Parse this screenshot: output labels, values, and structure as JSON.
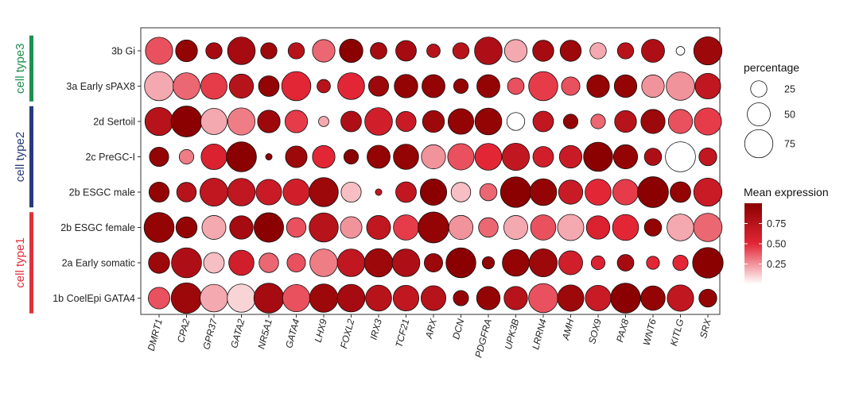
{
  "chart_data": {
    "type": "dotplot",
    "genes": [
      "DMRT1",
      "CPA2",
      "GPR37",
      "GATA2",
      "NR5A1",
      "GATA4",
      "LHX9",
      "FOXL2",
      "IRX3",
      "TCF21",
      "ARX",
      "DCN",
      "PDGFRA",
      "UPK3B",
      "LRRN4",
      "AMH",
      "SOX9",
      "PAX8",
      "WNT6",
      "KITLG",
      "SRX"
    ],
    "rows": [
      "3b Gi",
      "3a Early sPAX8",
      "2d Sertoil",
      "2c PreGC-I",
      "2b ESGC male",
      "2b ESGC female",
      "2a Early somatic",
      "1b CoelEpi GATA4"
    ],
    "groups": [
      {
        "label": "cell type3",
        "color": "#1e8f4e",
        "rows": [
          "3b Gi",
          "3a Early sPAX8"
        ]
      },
      {
        "label": "cell type2",
        "color": "#283a7a",
        "rows": [
          "2d Sertoil",
          "2c PreGC-I",
          "2b ESGC male"
        ]
      },
      {
        "label": "cell type1",
        "color": "#e0303c",
        "rows": [
          "2b ESGC female",
          "2a Early somatic",
          "1b CoelEpi GATA4"
        ]
      }
    ],
    "percentage": [
      [
        70,
        45,
        25,
        72,
        25,
        25,
        48,
        52,
        26,
        40,
        17,
        25,
        72,
        48,
        42,
        42,
        25,
        25,
        50,
        7,
        75
      ],
      [
        80,
        68,
        65,
        55,
        40,
        80,
        17,
        68,
        38,
        52,
        50,
        20,
        50,
        26,
        80,
        32,
        48,
        48,
        48,
        76,
        62
      ],
      [
        75,
        90,
        65,
        70,
        48,
        48,
        10,
        40,
        72,
        38,
        45,
        62,
        68,
        30,
        40,
        20,
        20,
        45,
        55,
        55,
        70
      ],
      [
        35,
        20,
        62,
        85,
        4,
        44,
        48,
        20,
        50,
        60,
        55,
        66,
        68,
        70,
        40,
        48,
        80,
        55,
        28,
        85,
        30
      ],
      [
        38,
        36,
        74,
        72,
        62,
        66,
        80,
        38,
        4,
        40,
        66,
        36,
        28,
        88,
        68,
        55,
        64,
        62,
        90,
        40,
        75
      ],
      [
        85,
        42,
        54,
        52,
        82,
        36,
        80,
        44,
        54,
        60,
        90,
        55,
        36,
        54,
        60,
        65,
        52,
        64,
        28,
        68,
        76
      ],
      [
        42,
        85,
        40,
        60,
        36,
        32,
        72,
        72,
        76,
        72,
        32,
        84,
        14,
        68,
        74,
        54,
        18,
        26,
        16,
        22,
        88
      ],
      [
        44,
        88,
        72,
        75,
        84,
        70,
        76,
        72,
        64,
        62,
        58,
        22,
        52,
        52,
        80,
        66,
        62,
        84,
        56,
        66,
        30
      ]
    ],
    "expression": [
      [
        0.4,
        0.95,
        0.85,
        0.85,
        0.9,
        0.75,
        0.35,
        1.0,
        0.85,
        0.85,
        0.75,
        0.75,
        0.8,
        0.2,
        0.85,
        0.9,
        0.2,
        0.75,
        0.8,
        0.0,
        0.9
      ],
      [
        0.2,
        0.35,
        0.45,
        0.75,
        0.95,
        0.5,
        0.75,
        0.5,
        0.9,
        0.95,
        0.95,
        0.95,
        0.95,
        0.4,
        0.45,
        0.4,
        0.95,
        0.95,
        0.25,
        0.25,
        0.7
      ],
      [
        0.75,
        1.0,
        0.2,
        0.3,
        0.9,
        0.45,
        0.2,
        0.8,
        0.6,
        0.65,
        0.9,
        0.95,
        0.95,
        0.0,
        0.7,
        0.95,
        0.35,
        0.75,
        0.9,
        0.4,
        0.45
      ],
      [
        0.95,
        0.3,
        0.55,
        1.0,
        1.0,
        0.9,
        0.5,
        1.0,
        0.95,
        0.95,
        0.25,
        0.4,
        0.5,
        0.7,
        0.6,
        0.65,
        1.0,
        0.95,
        0.8,
        0.0,
        0.7
      ],
      [
        0.95,
        0.75,
        0.7,
        0.7,
        0.65,
        0.6,
        0.9,
        0.15,
        0.7,
        0.7,
        1.0,
        0.15,
        0.35,
        1.0,
        0.95,
        0.65,
        0.5,
        0.45,
        1.0,
        0.95,
        0.65
      ],
      [
        0.95,
        0.95,
        0.2,
        0.85,
        1.0,
        0.4,
        0.75,
        0.25,
        0.7,
        0.45,
        0.95,
        0.25,
        0.35,
        0.2,
        0.4,
        0.2,
        0.55,
        0.5,
        0.95,
        0.2,
        0.35
      ],
      [
        0.9,
        0.8,
        0.15,
        0.6,
        0.35,
        0.4,
        0.3,
        0.7,
        0.9,
        0.8,
        0.9,
        1.0,
        0.95,
        0.95,
        0.9,
        0.6,
        0.55,
        0.85,
        0.5,
        0.5,
        1.0
      ],
      [
        0.4,
        0.9,
        0.2,
        0.1,
        0.85,
        0.4,
        0.9,
        0.85,
        0.75,
        0.7,
        0.75,
        0.95,
        0.95,
        0.75,
        0.4,
        0.9,
        0.65,
        1.0,
        0.95,
        0.7,
        0.95
      ]
    ],
    "legend_size_title": "percentage",
    "legend_size_values": [
      25,
      50,
      75
    ],
    "legend_size_labels": [
      "25",
      "50",
      "75"
    ],
    "legend_color_title": "Mean expression",
    "legend_color_labels": [
      "0.75",
      "0.50",
      "0.25"
    ],
    "legend_color_values": [
      0.75,
      0.5,
      0.25
    ],
    "color_range": [
      0,
      1
    ],
    "colors": {
      "low": "#ffffff",
      "mid": "#e32636",
      "high": "#8b0000"
    }
  }
}
